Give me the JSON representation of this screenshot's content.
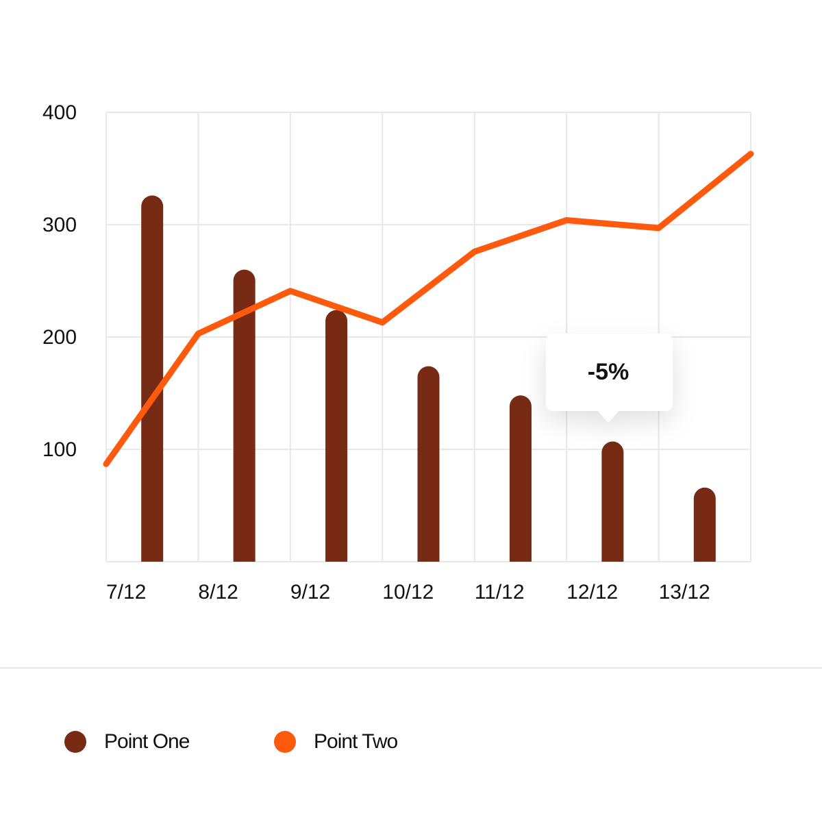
{
  "chart_data": {
    "type": "bar-line",
    "categories": [
      "7/12",
      "8/12",
      "9/12",
      "10/12",
      "11/12",
      "12/12",
      "13/12",
      null
    ],
    "series": [
      {
        "name": "Point One",
        "type": "bar",
        "color": "#772a14",
        "values": [
          326,
          260,
          224,
          174,
          148,
          107,
          66,
          null
        ]
      },
      {
        "name": "Point Two",
        "type": "line",
        "color": "#fe5a0e",
        "values": [
          87,
          203,
          241,
          213,
          276,
          304,
          297,
          363
        ]
      }
    ],
    "ylim": [
      0,
      400
    ],
    "yticks": [
      100,
      200,
      300,
      400
    ],
    "grid": true,
    "annotation": "-5%"
  }
}
